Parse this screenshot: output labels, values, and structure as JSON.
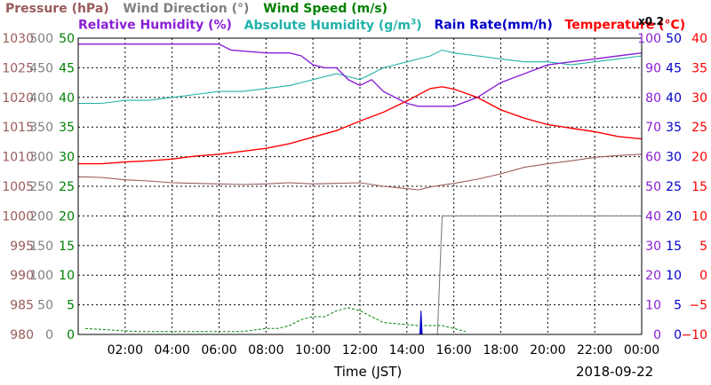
{
  "legend": {
    "pressure": "Pressure (hPa)",
    "wind_direction": "Wind Direction (°)",
    "wind_speed": "Wind Speed (m/s)",
    "relative_humidity": "Relative Humidity (%)",
    "absolute_humidity": "Absolute Humidity (g/m",
    "absolute_humidity_sup": "3",
    "absolute_humidity_close": ")",
    "rain_rate": "Rain Rate(mm/h)",
    "temperature": "Temperature (°C)",
    "scale_note": "x0.2"
  },
  "footer": {
    "xlabel": "Time (JST)",
    "date": "2018-09-22"
  },
  "colors": {
    "pressure": "#9a5b5b",
    "wind_direction": "#808080",
    "wind_speed": "#008000",
    "relative_humidity": "#8a1fd6",
    "absolute_humidity": "#20b2aa",
    "rain_rate": "#0000c8",
    "temperature": "#ff0000"
  },
  "chart_data": {
    "type": "line",
    "x_ticks": [
      "02:00",
      "04:00",
      "06:00",
      "08:00",
      "10:00",
      "12:00",
      "14:00",
      "16:00",
      "18:00",
      "20:00",
      "22:00",
      "00:00"
    ],
    "x_range_hours": [
      0,
      24
    ],
    "grid": true,
    "axes": {
      "pressure": {
        "ticks": [
          "1030",
          "1025",
          "1020",
          "1015",
          "1010",
          "1005",
          "1000",
          "995",
          "990",
          "985",
          "980"
        ],
        "range": [
          980,
          1030
        ]
      },
      "wind_direction": {
        "ticks": [
          "500",
          "450",
          "400",
          "350",
          "300",
          "250",
          "200",
          "150",
          "100",
          "50",
          "0"
        ],
        "range": [
          0,
          500
        ]
      },
      "wind_speed": {
        "ticks": [
          "50",
          "45",
          "40",
          "35",
          "30",
          "25",
          "20",
          "15",
          "10",
          "5",
          "0"
        ],
        "range": [
          0,
          50
        ]
      },
      "relative_humidity": {
        "ticks": [
          "100",
          "90",
          "80",
          "70",
          "60",
          "50",
          "40",
          "30",
          "20",
          "10",
          "0"
        ],
        "range": [
          0,
          100
        ]
      },
      "rain_rate": {
        "ticks": [
          "50",
          "45",
          "40",
          "35",
          "30",
          "25",
          "20",
          "15",
          "10",
          "5",
          "0"
        ],
        "range": [
          0,
          50
        ]
      },
      "temperature": {
        "ticks": [
          "40",
          "35",
          "30",
          "25",
          "20",
          "15",
          "10",
          "5",
          "0",
          "−5",
          "−10"
        ],
        "range": [
          -10,
          40
        ]
      }
    },
    "series": [
      {
        "key": "relative_humidity",
        "axis": "relative_humidity",
        "x": [
          0,
          6,
          6.5,
          8,
          9,
          9.5,
          10,
          10.5,
          11,
          11.5,
          12,
          12.5,
          13,
          13.5,
          14,
          14.5,
          15,
          16,
          17,
          18,
          19,
          20,
          21,
          22,
          23,
          24
        ],
        "values": [
          98,
          98,
          96,
          95,
          95,
          94,
          91,
          90,
          90,
          86,
          84,
          86,
          82,
          80,
          78,
          77,
          77,
          77,
          80,
          85,
          88,
          91,
          92,
          93,
          94,
          95
        ]
      },
      {
        "key": "absolute_humidity",
        "axis": "absolute_humidity_x0.2",
        "x": [
          0,
          1,
          2,
          3,
          4,
          5,
          6,
          7,
          8,
          9,
          9.5,
          10,
          10.5,
          11,
          11.5,
          12,
          12.5,
          13,
          13.5,
          14,
          14.5,
          15,
          15.5,
          16,
          17,
          18,
          19,
          20,
          21,
          22,
          23,
          24
        ],
        "values": [
          78,
          78,
          79,
          79,
          80,
          81,
          82,
          82,
          83,
          84,
          85,
          86,
          87,
          88,
          87,
          86,
          88,
          90,
          91,
          92,
          93,
          94,
          96,
          95,
          94,
          93,
          92,
          92,
          91,
          92,
          93,
          94
        ]
      },
      {
        "key": "temperature",
        "axis": "temperature",
        "x": [
          0,
          1,
          2,
          3,
          4,
          5,
          6,
          7,
          8,
          9,
          10,
          11,
          12,
          13,
          14,
          15,
          15.5,
          16,
          17,
          18,
          19,
          20,
          21,
          22,
          23,
          24
        ],
        "values": [
          18.8,
          18.8,
          19.1,
          19.3,
          19.6,
          20.1,
          20.4,
          20.9,
          21.4,
          22.2,
          23.3,
          24.4,
          26.0,
          27.5,
          29.4,
          31.5,
          31.8,
          31.4,
          30.0,
          27.9,
          26.5,
          25.4,
          24.8,
          24.2,
          23.4,
          23.0
        ]
      },
      {
        "key": "pressure",
        "axis": "pressure",
        "x": [
          0,
          1,
          2,
          3,
          4,
          5,
          6,
          7,
          8,
          9,
          10,
          11,
          12,
          13,
          14,
          14.5,
          15,
          16,
          17,
          18,
          19,
          20,
          21,
          22,
          23,
          24
        ],
        "values": [
          1006.6,
          1006.5,
          1006.1,
          1005.9,
          1005.6,
          1005.5,
          1005.4,
          1005.3,
          1005.4,
          1005.6,
          1005.4,
          1005.5,
          1005.6,
          1005.0,
          1004.6,
          1004.4,
          1004.9,
          1005.5,
          1006.2,
          1007.1,
          1008.2,
          1008.8,
          1009.3,
          1009.9,
          1010.2,
          1010.4
        ]
      },
      {
        "key": "wind_direction",
        "axis": "wind_direction",
        "x": [
          15.1,
          15.3,
          15.5,
          24
        ],
        "values": [
          0,
          0,
          200,
          200
        ]
      },
      {
        "key": "wind_speed",
        "axis": "wind_speed",
        "x": [
          0.3,
          2.5,
          4.0,
          5.5,
          7.0,
          8.0,
          8.5,
          9.0,
          9.5,
          10.0,
          10.5,
          11.0,
          11.5,
          12.0,
          12.5,
          13.0,
          14.5,
          15.5,
          16.5
        ],
        "values": [
          1,
          0.5,
          0.5,
          0.5,
          0.5,
          1,
          1,
          1.5,
          2.5,
          3,
          3,
          4,
          4.5,
          4,
          3,
          2,
          1.5,
          1.5,
          0.5
        ]
      },
      {
        "key": "rain_rate",
        "axis": "rain_rate",
        "x": [
          14.55,
          14.6,
          14.65
        ],
        "values": [
          0,
          4,
          0
        ]
      }
    ]
  }
}
